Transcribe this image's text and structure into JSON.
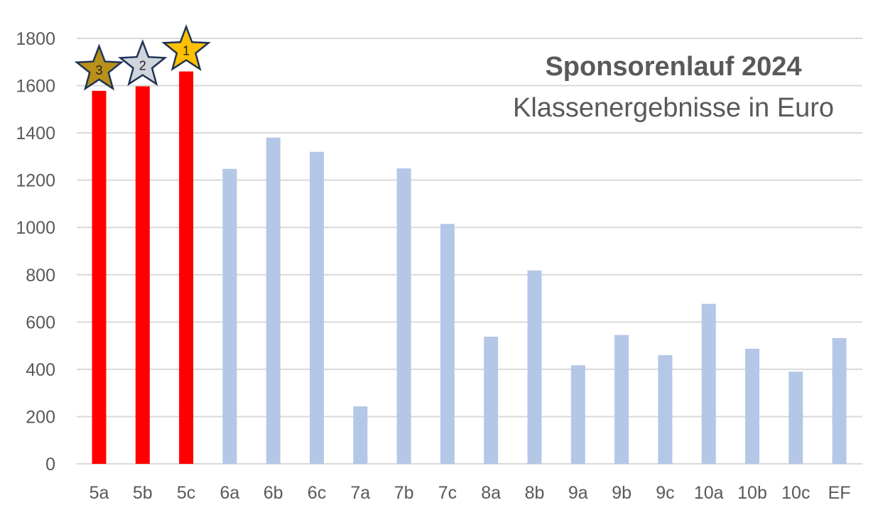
{
  "chart_data": {
    "type": "bar",
    "title": "Sponsorenlauf 2024",
    "subtitle": "Klassenergebnisse in Euro",
    "categories": [
      "5a",
      "5b",
      "5c",
      "6a",
      "6b",
      "6c",
      "7a",
      "7b",
      "7c",
      "8a",
      "8b",
      "9a",
      "9b",
      "9c",
      "10a",
      "10b",
      "10c",
      "EF"
    ],
    "values": [
      1578,
      1597,
      1660,
      1248,
      1380,
      1320,
      243,
      1250,
      1015,
      538,
      818,
      417,
      545,
      460,
      677,
      487,
      390,
      532
    ],
    "ylim": [
      0,
      1800
    ],
    "yticks": [
      0,
      200,
      400,
      600,
      800,
      1000,
      1200,
      1400,
      1600,
      1800
    ],
    "grid": true,
    "highlighted_categories": [
      "5a",
      "5b",
      "5c"
    ],
    "ranks": [
      {
        "category": "5c",
        "rank": "1",
        "color": "#FFC000"
      },
      {
        "category": "5b",
        "rank": "2",
        "color": "#D0D4DC"
      },
      {
        "category": "5a",
        "rank": "3",
        "color": "#B8901A"
      }
    ],
    "colors": {
      "highlight": "#FF0000",
      "default": "#B4C7E7",
      "grid": "#D9D9D9",
      "text": "#595959",
      "star_stroke": "#1F3355"
    }
  }
}
